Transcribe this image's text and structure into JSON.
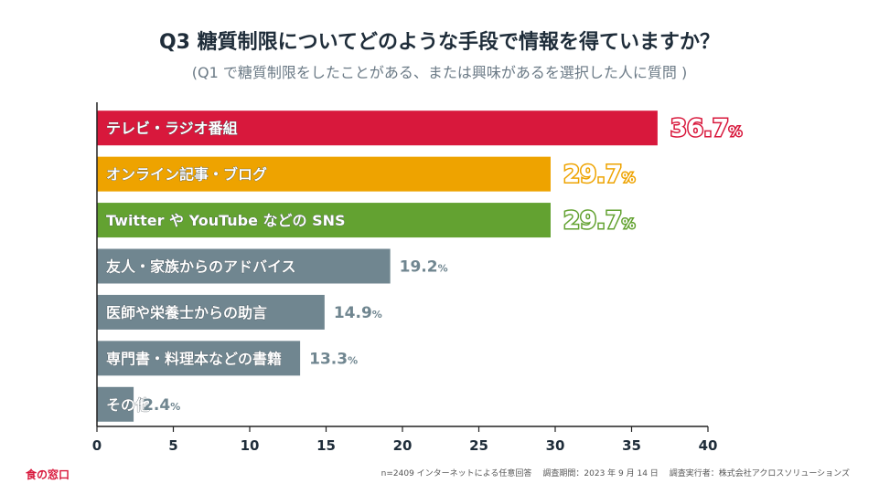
{
  "title": "Q3  糖質制限についてどのような手段で情報を得ていますか？",
  "subtitle": "(Q1 で糖質制限をしたことがある、または興味があるを選択した人に質問 )",
  "brand": "食の窓口",
  "footnote": {
    "sample": "n=2409 インターネットによる任意回答",
    "period": "調査期間：2023 年 9 月 14 日",
    "org": "調査実行者：株式会社アクロスソリューションズ"
  },
  "chart_data": {
    "type": "bar",
    "orientation": "horizontal",
    "categories": [
      "テレビ・ラジオ番組",
      "オンライン記事・ブログ",
      "Twitter や YouTube などの SNS",
      "友人・家族からのアドバイス",
      "医師や栄養士からの助言",
      "専門書・料理本などの書籍",
      "その他"
    ],
    "values": [
      36.7,
      29.7,
      29.7,
      19.2,
      14.9,
      13.3,
      2.4
    ],
    "value_labels": [
      "36.7",
      "29.7",
      "29.7",
      "19.2",
      "14.9",
      "13.3",
      "2.4"
    ],
    "unit": "%",
    "colors": [
      "#d8183c",
      "#eea300",
      "#63a231",
      "#708690",
      "#708690",
      "#708690",
      "#708690"
    ],
    "value_label_colors": [
      "#d8183c",
      "#eea300",
      "#63a231",
      "#708690",
      "#708690",
      "#708690",
      "#708690"
    ],
    "xlim": [
      0,
      40
    ],
    "xticks": [
      "0",
      "5",
      "10",
      "15",
      "20",
      "25",
      "30",
      "35",
      "40"
    ]
  }
}
